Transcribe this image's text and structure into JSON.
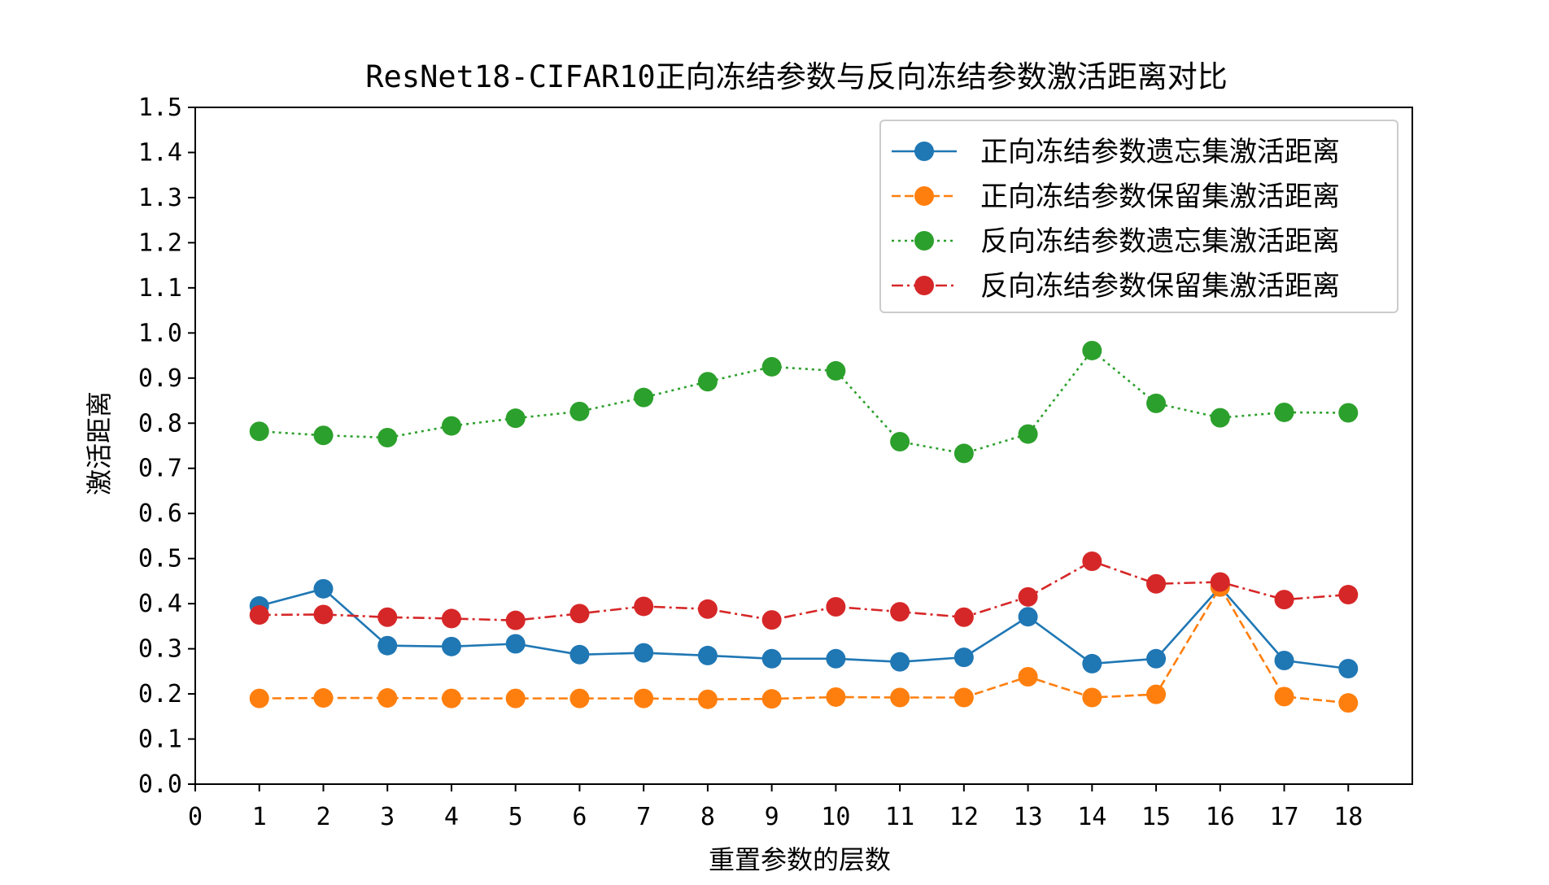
{
  "chart_data": {
    "type": "line",
    "title": "ResNet18-CIFAR10正向冻结参数与反向冻结参数激活距离对比",
    "xlabel": "重置参数的层数",
    "ylabel": "激活距离",
    "xlim": [
      0,
      19
    ],
    "ylim": [
      0.0,
      1.5
    ],
    "x_ticks": [
      "0",
      "1",
      "2",
      "3",
      "4",
      "5",
      "6",
      "7",
      "8",
      "9",
      "10",
      "11",
      "12",
      "13",
      "14",
      "15",
      "16",
      "17",
      "18"
    ],
    "y_ticks": [
      "0.0",
      "0.1",
      "0.2",
      "0.3",
      "0.4",
      "0.5",
      "0.6",
      "0.7",
      "0.8",
      "0.9",
      "1.0",
      "1.1",
      "1.2",
      "1.3",
      "1.4",
      "1.5"
    ],
    "x": [
      1,
      2,
      3,
      4,
      5,
      6,
      7,
      8,
      9,
      10,
      11,
      12,
      13,
      14,
      15,
      16,
      17,
      18
    ],
    "legend_position": "top-right",
    "grid": false,
    "series": [
      {
        "name": "正向冻结参数遗忘集激活距离",
        "color": "#1f77b4",
        "line_style": "solid",
        "values": [
          0.395,
          0.433,
          0.307,
          0.305,
          0.311,
          0.287,
          0.291,
          0.285,
          0.278,
          0.278,
          0.271,
          0.281,
          0.371,
          0.267,
          0.278,
          0.437,
          0.274,
          0.256
        ]
      },
      {
        "name": "正向冻结参数保留集激活距离",
        "color": "#ff7f0e",
        "line_style": "dashed",
        "values": [
          0.19,
          0.191,
          0.191,
          0.19,
          0.19,
          0.19,
          0.19,
          0.188,
          0.189,
          0.193,
          0.192,
          0.192,
          0.238,
          0.192,
          0.199,
          0.437,
          0.194,
          0.18
        ]
      },
      {
        "name": "反向冻结参数遗忘集激活距离",
        "color": "#2ca02c",
        "line_style": "dotted",
        "values": [
          0.782,
          0.773,
          0.768,
          0.794,
          0.811,
          0.826,
          0.857,
          0.892,
          0.925,
          0.916,
          0.759,
          0.733,
          0.776,
          0.961,
          0.844,
          0.812,
          0.824,
          0.823
        ]
      },
      {
        "name": "反向冻结参数保留集激活距离",
        "color": "#d62728",
        "line_style": "dashdot",
        "values": [
          0.375,
          0.376,
          0.37,
          0.367,
          0.363,
          0.378,
          0.394,
          0.388,
          0.364,
          0.393,
          0.382,
          0.37,
          0.415,
          0.494,
          0.444,
          0.448,
          0.409,
          0.42
        ]
      }
    ]
  }
}
